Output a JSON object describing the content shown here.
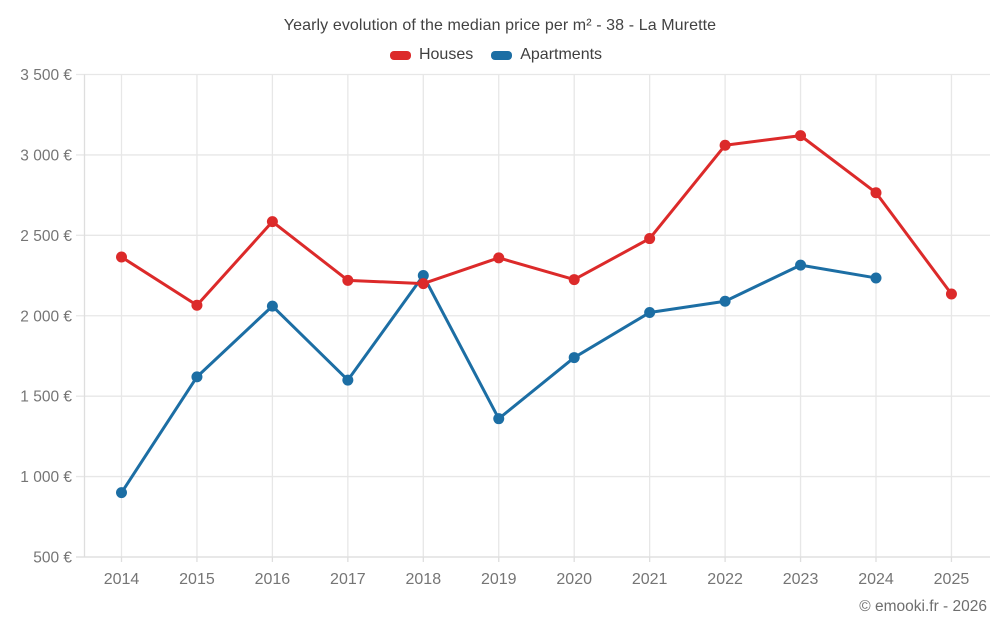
{
  "header": {
    "title": "Yearly evolution of the median price per m² - 38 - La Murette"
  },
  "legend": {
    "items": [
      {
        "label": "Houses",
        "color": "#dc2a2a"
      },
      {
        "label": "Apartments",
        "color": "#1c6ea4"
      }
    ]
  },
  "footer": {
    "attribution": "© emooki.fr - 2026"
  },
  "chart_data": {
    "type": "line",
    "title": "Yearly evolution of the median price per m² - 38 - La Murette",
    "x": [
      "2014",
      "2015",
      "2016",
      "2017",
      "2018",
      "2019",
      "2020",
      "2021",
      "2022",
      "2023",
      "2024",
      "2025"
    ],
    "series": [
      {
        "name": "Houses",
        "color": "#dc2a2a",
        "values": [
          2365,
          2065,
          2585,
          2220,
          2200,
          2360,
          2225,
          2480,
          3060,
          3120,
          2765,
          2135
        ]
      },
      {
        "name": "Apartments",
        "color": "#1c6ea4",
        "values": [
          900,
          1620,
          2060,
          1600,
          2250,
          1360,
          1740,
          2020,
          2090,
          2315,
          2235,
          null
        ]
      }
    ],
    "xlabel": "",
    "ylabel": "",
    "ylim": [
      500,
      3500
    ],
    "ytick_step": 500,
    "ytick_labels": [
      "500 €",
      "1 000 €",
      "1 500 €",
      "2 000 €",
      "2 500 €",
      "3 000 €",
      "3 500 €"
    ],
    "grid": true,
    "legend_position": "top",
    "currency": "€"
  },
  "colors": {
    "grid": "#e7e7e7",
    "axis": "#dedede",
    "tick_label": "#757575",
    "title_text": "#424242",
    "footer_text": "#6e6e6e",
    "series_houses": "#dc2a2a",
    "series_apartments": "#1c6ea4",
    "background": "#ffffff"
  }
}
